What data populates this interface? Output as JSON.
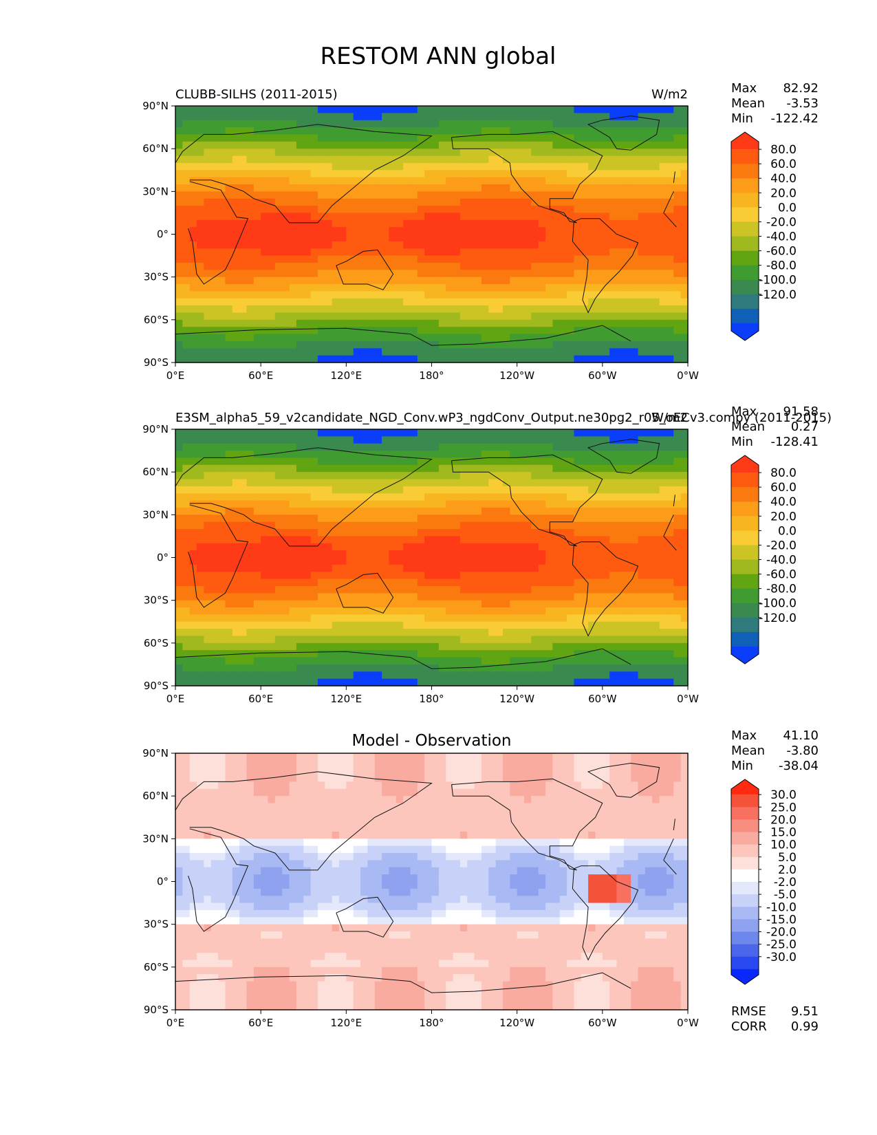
{
  "figure": {
    "title": "RESTOM ANN global"
  },
  "chart_data": [
    {
      "type": "heatmap",
      "panel": "test",
      "title_left": "CLUBB-SILHS (2011-2015)",
      "title_right": "W/m2",
      "units": "W/m2",
      "stats": {
        "max_label": "Max",
        "max": "82.92",
        "mean_label": "Mean",
        "mean": "-3.53",
        "min_label": "Min",
        "min": "-122.42"
      },
      "x_ticks": [
        "0°E",
        "60°E",
        "120°E",
        "180°",
        "120°W",
        "60°W",
        "0°W"
      ],
      "y_ticks": [
        "90°N",
        "60°N",
        "30°N",
        "0°",
        "30°S",
        "60°S",
        "90°S"
      ],
      "colorbar": {
        "levels": [
          "80.0",
          "60.0",
          "40.0",
          "20.0",
          "0.0",
          "-20.0",
          "-40.0",
          "-60.0",
          "-80.0",
          "-100.0",
          "-120.0"
        ],
        "colors": [
          "#ff3a17",
          "#fe5b10",
          "#fb7a10",
          "#fd9c18",
          "#f8b520",
          "#f9cc35",
          "#cbc424",
          "#a0b91e",
          "#62a512",
          "#409c30",
          "#3a8a50",
          "#2e7a7c",
          "#1060b8",
          "#0a3efa"
        ]
      },
      "field_range": [
        -122.42,
        82.92
      ],
      "field_mean": -3.53
    },
    {
      "type": "heatmap",
      "panel": "reference",
      "title_left": "E3SM_alpha5_59_v2candidate_NGD_Conv.wP3_ngdConv_Output.ne30pg2_r05_oECv3.compy (2011-2015)",
      "title_right": "W/m2",
      "units": "W/m2",
      "stats": {
        "max_label": "Max",
        "max": "91.58",
        "mean_label": "Mean",
        "mean": "0.27",
        "min_label": "Min",
        "min": "-128.41"
      },
      "x_ticks": [
        "0°E",
        "60°E",
        "120°E",
        "180°",
        "120°W",
        "60°W",
        "0°W"
      ],
      "y_ticks": [
        "90°N",
        "60°N",
        "30°N",
        "0°",
        "30°S",
        "60°S",
        "90°S"
      ],
      "colorbar": {
        "levels": [
          "80.0",
          "60.0",
          "40.0",
          "20.0",
          "0.0",
          "-20.0",
          "-40.0",
          "-60.0",
          "-80.0",
          "-100.0",
          "-120.0"
        ],
        "colors": [
          "#ff3a17",
          "#fe5b10",
          "#fb7a10",
          "#fd9c18",
          "#f8b520",
          "#f9cc35",
          "#cbc424",
          "#a0b91e",
          "#62a512",
          "#409c30",
          "#3a8a50",
          "#2e7a7c",
          "#1060b8",
          "#0a3efa"
        ]
      },
      "field_range": [
        -128.41,
        91.58
      ],
      "field_mean": 0.27
    },
    {
      "type": "heatmap",
      "panel": "difference",
      "title": "Model - Observation",
      "stats": {
        "max_label": "Max",
        "max": "41.10",
        "mean_label": "Mean",
        "mean": "-3.80",
        "min_label": "Min",
        "min": "-38.04"
      },
      "metrics": {
        "rmse_label": "RMSE",
        "rmse": "9.51",
        "corr_label": "CORR",
        "corr": "0.99"
      },
      "x_ticks": [
        "0°E",
        "60°E",
        "120°E",
        "180°",
        "120°W",
        "60°W",
        "0°W"
      ],
      "y_ticks": [
        "90°N",
        "60°N",
        "30°N",
        "0°",
        "30°S",
        "60°S",
        "90°S"
      ],
      "colorbar": {
        "levels": [
          "30.0",
          "25.0",
          "20.0",
          "15.0",
          "10.0",
          "5.0",
          "2.0",
          "-2.0",
          "-5.0",
          "-10.0",
          "-15.0",
          "-20.0",
          "-25.0",
          "-30.0"
        ],
        "colors": [
          "#ff2a10",
          "#f5523a",
          "#f77060",
          "#f78e80",
          "#faaba0",
          "#fcc6bd",
          "#fde0da",
          "#ffffff",
          "#e3e8fb",
          "#c8d2f8",
          "#a9b9f4",
          "#8ea2f0",
          "#6e87ec",
          "#4b66ea",
          "#2948f0",
          "#0a28fb"
        ]
      },
      "field_range": [
        -38.04,
        41.1
      ],
      "field_mean": -3.8
    }
  ]
}
